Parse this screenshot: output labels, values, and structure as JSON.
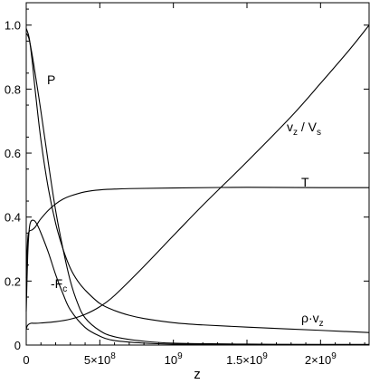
{
  "chart_data": {
    "type": "line",
    "title": "",
    "xlabel": "z",
    "ylabel": "",
    "xlim": [
      0,
      2330000000
    ],
    "ylim": [
      0,
      1.07
    ],
    "grid": false,
    "x_ticks": [
      {
        "value": 0,
        "mant": "0",
        "exp": ""
      },
      {
        "value": 500000000,
        "mant": "5×10",
        "exp": "8"
      },
      {
        "value": 1000000000,
        "mant": "10",
        "exp": "9"
      },
      {
        "value": 1500000000,
        "mant": "1.5×10",
        "exp": "9"
      },
      {
        "value": 2000000000,
        "mant": "2×10",
        "exp": "9"
      }
    ],
    "y_ticks": [
      "0",
      "0.2",
      "0.4",
      "0.6",
      "0.8",
      "1.0"
    ],
    "series": [
      {
        "name": "P",
        "label": {
          "main": "P",
          "sub": ""
        },
        "x": [
          0,
          20000000,
          50000000,
          100000000,
          150000000,
          200000000,
          250000000,
          300000000,
          350000000,
          400000000,
          500000000,
          600000000,
          800000000,
          1000000000,
          1500000000,
          2000000000,
          2330000000
        ],
        "y": [
          0.975,
          0.955,
          0.88,
          0.73,
          0.57,
          0.42,
          0.3,
          0.2,
          0.13,
          0.085,
          0.045,
          0.026,
          0.012,
          0.006,
          0.003,
          0.002,
          0.002
        ]
      },
      {
        "name": "rho_vz",
        "label": {
          "main": "ρ·v",
          "sub": "z"
        },
        "x": [
          0,
          20000000,
          40000000,
          60000000,
          100000000,
          150000000,
          200000000,
          250000000,
          300000000,
          350000000,
          400000000,
          500000000,
          600000000,
          700000000,
          800000000,
          1000000000,
          1200000000,
          1500000000,
          2000000000,
          2330000000
        ],
        "y": [
          0.99,
          0.96,
          0.89,
          0.8,
          0.64,
          0.49,
          0.38,
          0.3,
          0.24,
          0.2,
          0.172,
          0.13,
          0.108,
          0.093,
          0.083,
          0.07,
          0.063,
          0.056,
          0.046,
          0.039
        ]
      },
      {
        "name": "T",
        "label": {
          "main": "T",
          "sub": ""
        },
        "x": [
          0,
          10000000,
          20000000,
          40000000,
          60000000,
          80000000,
          100000000,
          150000000,
          200000000,
          250000000,
          300000000,
          400000000,
          500000000,
          700000000,
          1000000000,
          1500000000,
          2000000000,
          2330000000
        ],
        "y": [
          0.21,
          0.33,
          0.355,
          0.36,
          0.368,
          0.382,
          0.395,
          0.421,
          0.441,
          0.456,
          0.466,
          0.479,
          0.485,
          0.489,
          0.491,
          0.493,
          0.492,
          0.492
        ]
      },
      {
        "name": "vz_Vs",
        "label": {
          "main": "v",
          "sub": "z",
          "main2": " / V",
          "sub2": "s"
        },
        "x": [
          0,
          10000000,
          30000000,
          60000000,
          100000000,
          200000000,
          300000000,
          400000000,
          500000000,
          600000000,
          800000000,
          1000000000,
          1200000000,
          1500000000,
          1800000000,
          2000000000,
          2200000000,
          2330000000
        ],
        "y": [
          0.05,
          0.062,
          0.068,
          0.068,
          0.069,
          0.073,
          0.081,
          0.096,
          0.12,
          0.155,
          0.246,
          0.342,
          0.437,
          0.573,
          0.714,
          0.818,
          0.925,
          1.0
        ]
      },
      {
        "name": "-Fc",
        "label": {
          "main": "-F",
          "sub": "c"
        },
        "x": [
          0,
          10000000,
          20000000,
          30000000,
          50000000,
          70000000,
          100000000,
          150000000,
          200000000,
          250000000,
          300000000,
          400000000,
          500000000,
          600000000,
          800000000,
          1000000000,
          1500000000,
          2000000000,
          2330000000
        ],
        "y": [
          0.105,
          0.28,
          0.36,
          0.385,
          0.39,
          0.38,
          0.35,
          0.29,
          0.22,
          0.16,
          0.11,
          0.055,
          0.028,
          0.014,
          0.006,
          0.003,
          0.001,
          0.001,
          0.0005
        ]
      }
    ]
  }
}
